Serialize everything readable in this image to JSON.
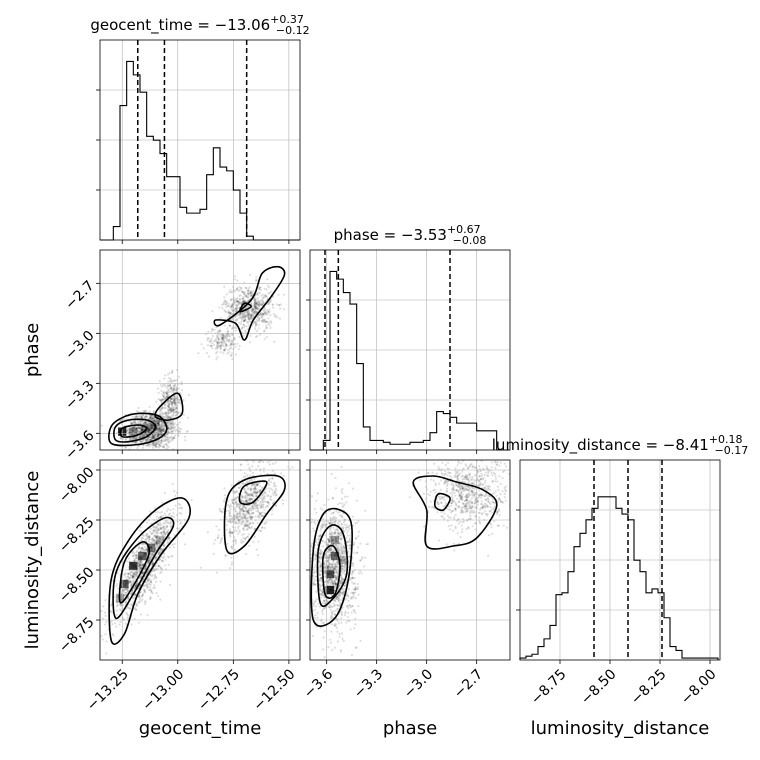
{
  "chart_data": {
    "type": "corner",
    "parameters": [
      "geocent_time",
      "phase",
      "luminosity_distance"
    ],
    "titles": [
      {
        "param": "geocent_time",
        "prefix": "geocent_time = ",
        "median": "−13.06",
        "plus": "+0.37",
        "minus": "−0.12"
      },
      {
        "param": "phase",
        "prefix": "phase = ",
        "median": "−3.53",
        "plus": "+0.67",
        "minus": "−0.08"
      },
      {
        "param": "luminosity_distance",
        "prefix": "luminosity_distance = ",
        "median": "−8.41",
        "plus": "+0.18",
        "minus": "−0.17"
      }
    ],
    "axes": {
      "geocent_time": {
        "range": [
          -13.35,
          -12.45
        ],
        "ticks": [
          -13.25,
          -13.0,
          -12.75,
          -12.5
        ],
        "tick_labels": [
          "−13.25",
          "−13.00",
          "−12.75",
          "−12.50"
        ]
      },
      "phase": {
        "range": [
          -3.7,
          -2.5
        ],
        "ticks": [
          -3.6,
          -3.3,
          -3.0,
          -2.7
        ],
        "tick_labels": [
          "−3.6",
          "−3.3",
          "−3.0",
          "−2.7"
        ]
      },
      "luminosity_distance": {
        "range": [
          -8.95,
          -7.95
        ],
        "ticks": [
          -8.75,
          -8.5,
          -8.25,
          -8.0
        ],
        "tick_labels": [
          "−8.75",
          "−8.50",
          "−8.25",
          "−8.00"
        ]
      }
    },
    "histograms": [
      {
        "param": "geocent_time",
        "edges": [
          -13.35,
          -13.32,
          -13.29,
          -13.26,
          -13.23,
          -13.2,
          -13.17,
          -13.14,
          -13.11,
          -13.08,
          -13.05,
          -13.02,
          -12.99,
          -12.96,
          -12.93,
          -12.9,
          -12.87,
          -12.84,
          -12.81,
          -12.78,
          -12.75,
          -12.72,
          -12.69,
          -12.66,
          -12.63,
          -12.6,
          -12.57,
          -12.54,
          -12.51,
          -12.48,
          -12.45
        ],
        "counts": [
          0,
          0,
          0.07,
          0.7,
          0.93,
          0.86,
          0.77,
          0.54,
          0.52,
          0.45,
          0.33,
          0.33,
          0.17,
          0.14,
          0.14,
          0.16,
          0.34,
          0.48,
          0.38,
          0.36,
          0.26,
          0.14,
          0.02,
          0,
          0,
          0,
          0,
          0,
          0,
          0
        ],
        "quantiles": [
          -13.18,
          -13.06,
          -12.69
        ]
      },
      {
        "param": "phase",
        "edges": [
          -3.7,
          -3.66,
          -3.62,
          -3.58,
          -3.54,
          -3.5,
          -3.46,
          -3.42,
          -3.38,
          -3.34,
          -3.3,
          -3.26,
          -3.22,
          -3.18,
          -3.14,
          -3.1,
          -3.06,
          -3.02,
          -2.98,
          -2.94,
          -2.9,
          -2.86,
          -2.82,
          -2.78,
          -2.74,
          -2.7,
          -2.66,
          -2.62,
          -2.58,
          -2.54,
          -2.5
        ],
        "counts": [
          0,
          0,
          0.05,
          0.93,
          0.89,
          0.82,
          0.76,
          0.45,
          0.12,
          0.05,
          0.05,
          0.04,
          0.03,
          0.03,
          0.03,
          0.04,
          0.04,
          0.05,
          0.09,
          0.2,
          0.19,
          0.17,
          0.14,
          0.14,
          0.14,
          0.1,
          0.1,
          0.1,
          0,
          0
        ],
        "quantiles": [
          -3.61,
          -3.53,
          -2.86
        ]
      },
      {
        "param": "luminosity_distance",
        "edges": [
          -8.95,
          -8.92,
          -8.89,
          -8.86,
          -8.83,
          -8.8,
          -8.77,
          -8.74,
          -8.71,
          -8.68,
          -8.65,
          -8.62,
          -8.59,
          -8.56,
          -8.53,
          -8.5,
          -8.47,
          -8.44,
          -8.41,
          -8.38,
          -8.35,
          -8.32,
          -8.29,
          -8.26,
          -8.23,
          -8.2,
          -8.17,
          -8.14,
          -8.11,
          -8.08,
          -8.05,
          -8.02,
          -7.99,
          -7.96
        ],
        "counts": [
          0.01,
          0.02,
          0.03,
          0.07,
          0.11,
          0.18,
          0.34,
          0.35,
          0.46,
          0.59,
          0.66,
          0.73,
          0.79,
          0.85,
          0.85,
          0.85,
          0.79,
          0.76,
          0.73,
          0.52,
          0.46,
          0.35,
          0.37,
          0.35,
          0.22,
          0.07,
          0.05,
          0.01,
          0.01,
          0.01,
          0.01,
          0.01,
          0.01
        ],
        "quantiles": [
          -8.58,
          -8.41,
          -8.24
        ]
      }
    ],
    "pairs": [
      {
        "x": "geocent_time",
        "y": "phase",
        "clusters": [
          {
            "cx": -13.12,
            "cy": -3.58,
            "sx": 0.055,
            "sy": 0.055,
            "n": 1100
          },
          {
            "cx": -13.03,
            "cy": -3.4,
            "sx": 0.025,
            "sy": 0.07,
            "n": 300
          },
          {
            "cx": -12.68,
            "cy": -2.85,
            "sx": 0.055,
            "sy": 0.07,
            "n": 650
          },
          {
            "cx": -12.8,
            "cy": -3.05,
            "sx": 0.04,
            "sy": 0.04,
            "n": 160
          }
        ],
        "density": [
          {
            "x": -13.25,
            "y": -3.59,
            "v": 0.9
          },
          {
            "x": -13.2,
            "y": -3.59,
            "v": 0.45
          },
          {
            "x": -13.15,
            "y": -3.57,
            "v": 0.35
          },
          {
            "x": -13.2,
            "y": -3.63,
            "v": 0.3
          },
          {
            "x": -13.1,
            "y": -3.55,
            "v": 0.25
          }
        ],
        "contours": [
          [
            [
              -13.3,
              -3.66
            ],
            [
              -13.3,
              -3.56
            ],
            [
              -13.24,
              -3.5
            ],
            [
              -13.16,
              -3.48
            ],
            [
              -13.08,
              -3.5
            ],
            [
              -13.05,
              -3.58
            ],
            [
              -13.1,
              -3.64
            ],
            [
              -13.2,
              -3.67
            ]
          ],
          [
            [
              -13.28,
              -3.64
            ],
            [
              -13.28,
              -3.56
            ],
            [
              -13.22,
              -3.52
            ],
            [
              -13.14,
              -3.52
            ],
            [
              -13.1,
              -3.56
            ],
            [
              -13.14,
              -3.62
            ],
            [
              -13.22,
              -3.65
            ]
          ],
          [
            [
              -13.25,
              -3.62
            ],
            [
              -13.25,
              -3.57
            ],
            [
              -13.18,
              -3.55
            ],
            [
              -13.14,
              -3.57
            ],
            [
              -13.18,
              -3.61
            ]
          ],
          [
            [
              -13.08,
              -3.44
            ],
            [
              -13.0,
              -3.36
            ],
            [
              -12.98,
              -3.48
            ],
            [
              -13.04,
              -3.52
            ],
            [
              -13.1,
              -3.5
            ]
          ],
          [
            [
              -12.81,
              -2.95
            ],
            [
              -12.67,
              -2.8
            ],
            [
              -12.62,
              -2.64
            ],
            [
              -12.55,
              -2.6
            ],
            [
              -12.52,
              -2.65
            ],
            [
              -12.58,
              -2.78
            ],
            [
              -12.66,
              -2.92
            ],
            [
              -12.7,
              -3.04
            ],
            [
              -12.74,
              -2.94
            ],
            [
              -12.83,
              -2.92
            ]
          ],
          [
            [
              -12.72,
              -2.87
            ],
            [
              -12.7,
              -2.82
            ],
            [
              -12.67,
              -2.84
            ]
          ]
        ]
      },
      {
        "x": "geocent_time",
        "y": "luminosity_distance",
        "clusters": [
          {
            "cx": -13.15,
            "cy": -8.48,
            "sx": 0.07,
            "sy": 0.13,
            "n": 1200,
            "rho": 0.8
          },
          {
            "cx": -12.68,
            "cy": -8.18,
            "sx": 0.06,
            "sy": 0.1,
            "n": 700,
            "rho": 0.5
          }
        ],
        "density": [
          {
            "x": -13.24,
            "y": -8.57,
            "v": 0.7
          },
          {
            "x": -13.2,
            "y": -8.48,
            "v": 0.8
          },
          {
            "x": -13.16,
            "y": -8.43,
            "v": 0.6
          },
          {
            "x": -13.12,
            "y": -8.39,
            "v": 0.5
          },
          {
            "x": -13.08,
            "y": -8.35,
            "v": 0.3
          },
          {
            "x": -13.26,
            "y": -8.64,
            "v": 0.35
          }
        ],
        "contours": [
          [
            [
              -13.3,
              -8.85
            ],
            [
              -13.3,
              -8.55
            ],
            [
              -13.22,
              -8.35
            ],
            [
              -13.1,
              -8.2
            ],
            [
              -12.98,
              -8.14
            ],
            [
              -12.95,
              -8.24
            ],
            [
              -13.08,
              -8.43
            ],
            [
              -13.18,
              -8.62
            ],
            [
              -13.24,
              -8.82
            ]
          ],
          [
            [
              -13.28,
              -8.74
            ],
            [
              -13.28,
              -8.52
            ],
            [
              -13.18,
              -8.34
            ],
            [
              -13.06,
              -8.24
            ],
            [
              -13.02,
              -8.28
            ],
            [
              -13.1,
              -8.42
            ],
            [
              -13.2,
              -8.62
            ]
          ],
          [
            [
              -13.26,
              -8.66
            ],
            [
              -13.24,
              -8.46
            ],
            [
              -13.16,
              -8.36
            ],
            [
              -13.13,
              -8.42
            ],
            [
              -13.2,
              -8.58
            ]
          ],
          [
            [
              -12.78,
              -8.4
            ],
            [
              -12.78,
              -8.15
            ],
            [
              -12.7,
              -8.05
            ],
            [
              -12.55,
              -8.03
            ],
            [
              -12.52,
              -8.1
            ],
            [
              -12.6,
              -8.22
            ],
            [
              -12.7,
              -8.38
            ]
          ],
          [
            [
              -12.72,
              -8.16
            ],
            [
              -12.7,
              -8.08
            ],
            [
              -12.6,
              -8.06
            ],
            [
              -12.66,
              -8.16
            ]
          ]
        ]
      },
      {
        "x": "phase",
        "y": "luminosity_distance",
        "clusters": [
          {
            "cx": -3.56,
            "cy": -8.48,
            "sx": 0.07,
            "sy": 0.15,
            "n": 1300
          },
          {
            "cx": -2.75,
            "cy": -8.12,
            "sx": 0.12,
            "sy": 0.09,
            "n": 700
          }
        ],
        "density": [
          {
            "x": -3.58,
            "y": -8.6,
            "v": 0.9
          },
          {
            "x": -3.58,
            "y": -8.52,
            "v": 0.7
          },
          {
            "x": -3.55,
            "y": -8.43,
            "v": 0.55
          },
          {
            "x": -3.55,
            "y": -8.35,
            "v": 0.4
          },
          {
            "x": -3.51,
            "y": -8.45,
            "v": 0.3
          }
        ],
        "contours": [
          [
            [
              -3.68,
              -8.75
            ],
            [
              -3.68,
              -8.4
            ],
            [
              -3.62,
              -8.22
            ],
            [
              -3.52,
              -8.2
            ],
            [
              -3.45,
              -8.28
            ],
            [
              -3.47,
              -8.55
            ],
            [
              -3.55,
              -8.74
            ]
          ],
          [
            [
              -3.64,
              -8.66
            ],
            [
              -3.65,
              -8.4
            ],
            [
              -3.58,
              -8.28
            ],
            [
              -3.5,
              -8.32
            ],
            [
              -3.48,
              -8.52
            ],
            [
              -3.57,
              -8.65
            ]
          ],
          [
            [
              -3.61,
              -8.62
            ],
            [
              -3.62,
              -8.43
            ],
            [
              -3.56,
              -8.38
            ],
            [
              -3.52,
              -8.48
            ],
            [
              -3.55,
              -8.62
            ]
          ],
          [
            [
              -3.0,
              -8.38
            ],
            [
              -3.0,
              -8.2
            ],
            [
              -3.08,
              -8.06
            ],
            [
              -2.96,
              -8.03
            ],
            [
              -2.82,
              -8.06
            ],
            [
              -2.66,
              -8.1
            ],
            [
              -2.58,
              -8.18
            ],
            [
              -2.7,
              -8.34
            ],
            [
              -2.84,
              -8.38
            ]
          ],
          [
            [
              -2.95,
              -8.18
            ],
            [
              -2.93,
              -8.12
            ],
            [
              -2.86,
              -8.14
            ],
            [
              -2.9,
              -8.2
            ]
          ]
        ]
      }
    ]
  }
}
